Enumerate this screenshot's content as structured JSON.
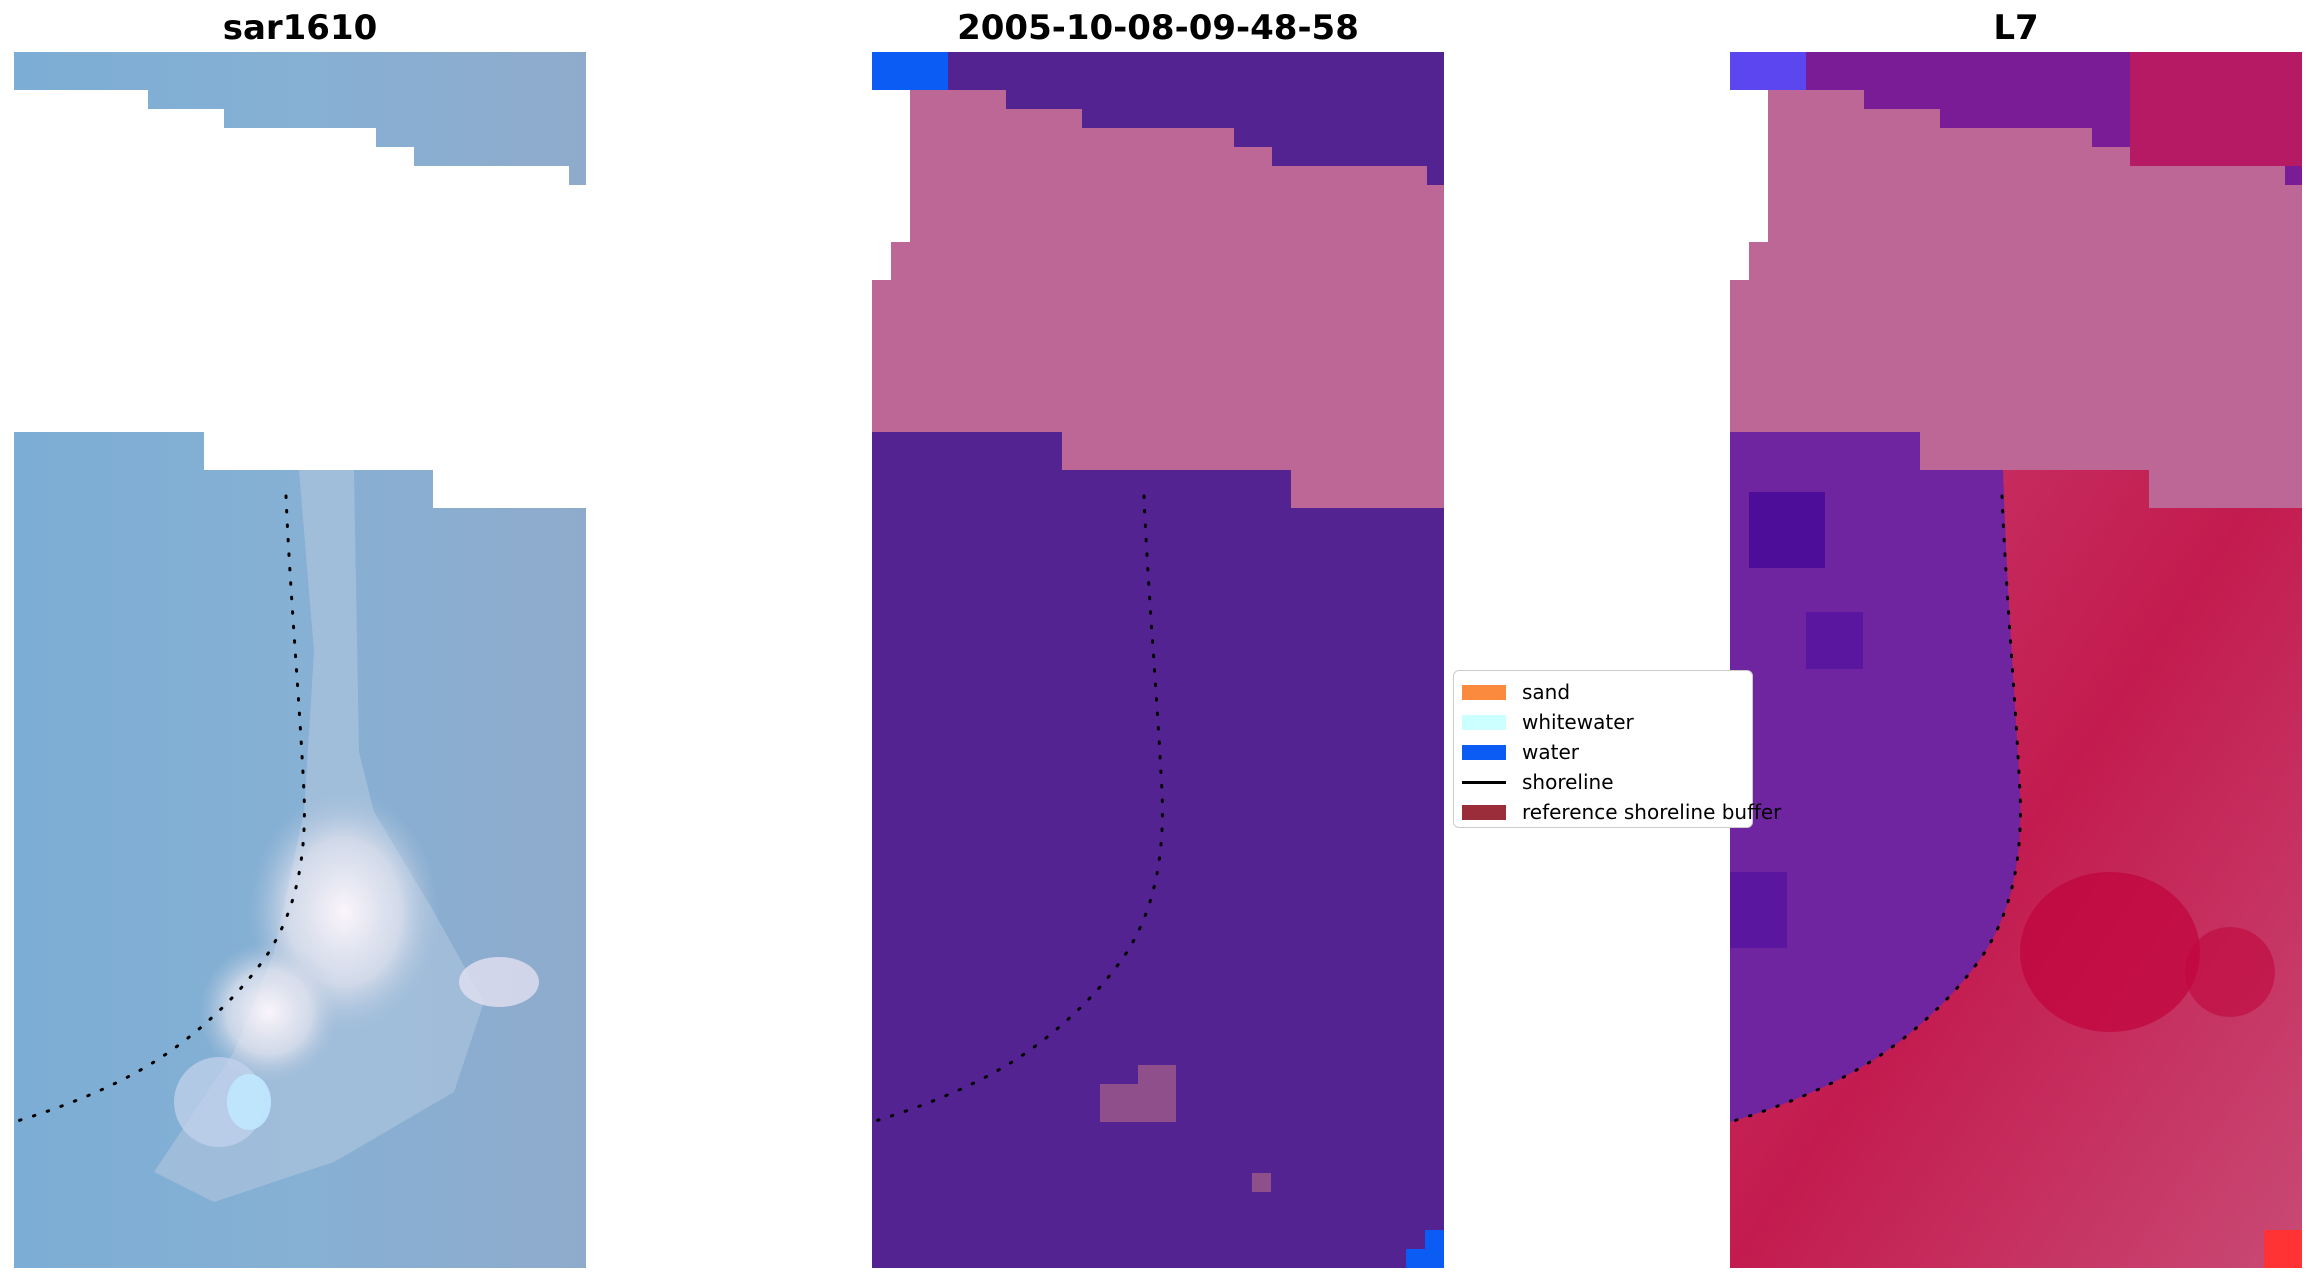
{
  "panels": [
    {
      "title": "sar1610",
      "kind": "rgb-image"
    },
    {
      "title": "2005-10-08-09-48-58",
      "kind": "classified-image"
    },
    {
      "title": "L7",
      "kind": "index-image"
    }
  ],
  "legend": {
    "items": [
      {
        "label": "sand",
        "type": "patch",
        "color": "#fb8a3e"
      },
      {
        "label": "whitewater",
        "type": "patch",
        "color": "#ccffff"
      },
      {
        "label": "water",
        "type": "patch",
        "color": "#0a5cf5"
      },
      {
        "label": "shoreline",
        "type": "line",
        "color": "#000000"
      },
      {
        "label": "reference shoreline buffer",
        "type": "patch",
        "color": "#9b2d3a"
      }
    ]
  },
  "colors": {
    "sar_base": "#86aed3",
    "sar_bright": "#f4eef4",
    "classified_purple": "#532391",
    "classified_pink": "#bd6796",
    "classified_water": "#0a5cf5",
    "l7_purple": "#6f24a0",
    "l7_red": "#c02a5e",
    "l7_pink": "#bd6796",
    "shoreline": "#000000"
  }
}
